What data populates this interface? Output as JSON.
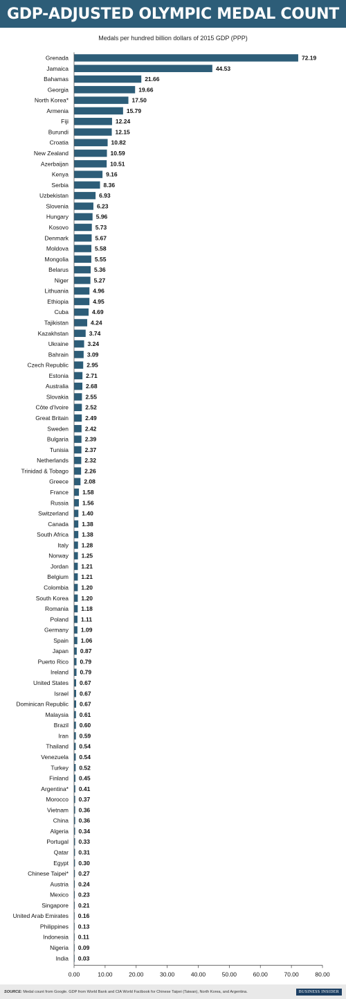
{
  "header": {
    "title": "GDP-ADJUSTED OLYMPIC MEDAL COUNT",
    "subtitle": "Medals per hundred billion dollars of 2015 GDP (PPP)"
  },
  "footer": {
    "source_label": "SOURCE:",
    "source_text": "Medal count from Google. GDP from World Bank and CIA World Factbook for Chinese Taipei (Taiwan), North Korea, and Argentina.",
    "brand": "BUSINESS INSIDER"
  },
  "colors": {
    "bar": "#2d5d78",
    "title_background": "#2d5d78",
    "footer_background": "#e9e9e9"
  },
  "chart_data": {
    "type": "bar",
    "orientation": "horizontal",
    "title": "GDP-ADJUSTED OLYMPIC MEDAL COUNT",
    "subtitle": "Medals per hundred billion dollars of 2015 GDP (PPP)",
    "xlim": [
      0,
      80
    ],
    "x_ticks": [
      "0.00",
      "10.00",
      "20.00",
      "30.00",
      "40.00",
      "50.00",
      "60.00",
      "70.00",
      "80.00"
    ],
    "grid": false,
    "legend": "none",
    "categories": [
      "Grenada",
      "Jamaica",
      "Bahamas",
      "Georgia",
      "North Korea*",
      "Armenia",
      "Fiji",
      "Burundi",
      "Croatia",
      "New Zealand",
      "Azerbaijan",
      "Kenya",
      "Serbia",
      "Uzbekistan",
      "Slovenia",
      "Hungary",
      "Kosovo",
      "Denmark",
      "Moldova",
      "Mongolia",
      "Belarus",
      "Niger",
      "Lithuania",
      "Ethiopia",
      "Cuba",
      "Tajikistan",
      "Kazakhstan",
      "Ukraine",
      "Bahrain",
      "Czech Republic",
      "Estonia",
      "Australia",
      "Slovakia",
      "Côte d'Ivoire",
      "Great Britain",
      "Sweden",
      "Bulgaria",
      "Tunisia",
      "Netherlands",
      "Trinidad & Tobago",
      "Greece",
      "France",
      "Russia",
      "Switzerland",
      "Canada",
      "South Africa",
      "Italy",
      "Norway",
      "Jordan",
      "Belgium",
      "Colombia",
      "South Korea",
      "Romania",
      "Poland",
      "Germany",
      "Spain",
      "Japan",
      "Puerto Rico",
      "Ireland",
      "United States",
      "Israel",
      "Dominican Republic",
      "Malaysia",
      "Brazil",
      "Iran",
      "Thailand",
      "Venezuela",
      "Turkey",
      "Finland",
      "Argentina*",
      "Morocco",
      "Vietnam",
      "China",
      "Algeria",
      "Portugal",
      "Qatar",
      "Egypt",
      "Chinese Taipei*",
      "Austria",
      "Mexico",
      "Singapore",
      "United Arab Emirates",
      "Philippines",
      "Indonesia",
      "Nigeria",
      "India"
    ],
    "values": [
      72.19,
      44.53,
      21.66,
      19.66,
      17.5,
      15.79,
      12.24,
      12.15,
      10.82,
      10.59,
      10.51,
      9.16,
      8.36,
      6.93,
      6.23,
      5.96,
      5.73,
      5.67,
      5.58,
      5.55,
      5.36,
      5.27,
      4.96,
      4.95,
      4.69,
      4.24,
      3.74,
      3.24,
      3.09,
      2.95,
      2.71,
      2.68,
      2.55,
      2.52,
      2.49,
      2.42,
      2.39,
      2.37,
      2.32,
      2.26,
      2.08,
      1.58,
      1.56,
      1.4,
      1.38,
      1.38,
      1.28,
      1.25,
      1.21,
      1.21,
      1.2,
      1.2,
      1.18,
      1.11,
      1.09,
      1.06,
      0.87,
      0.79,
      0.79,
      0.67,
      0.67,
      0.67,
      0.61,
      0.6,
      0.59,
      0.54,
      0.54,
      0.52,
      0.45,
      0.41,
      0.37,
      0.36,
      0.36,
      0.34,
      0.33,
      0.31,
      0.3,
      0.27,
      0.24,
      0.23,
      0.21,
      0.16,
      0.13,
      0.11,
      0.09,
      0.03
    ],
    "value_labels": [
      "72.19",
      "44.53",
      "21.66",
      "19.66",
      "17.50",
      "15.79",
      "12.24",
      "12.15",
      "10.82",
      "10.59",
      "10.51",
      "9.16",
      "8.36",
      "6.93",
      "6.23",
      "5.96",
      "5.73",
      "5.67",
      "5.58",
      "5.55",
      "5.36",
      "5.27",
      "4.96",
      "4.95",
      "4.69",
      "4.24",
      "3.74",
      "3.24",
      "3.09",
      "2.95",
      "2.71",
      "2.68",
      "2.55",
      "2.52",
      "2.49",
      "2.42",
      "2.39",
      "2.37",
      "2.32",
      "2.26",
      "2.08",
      "1.58",
      "1.56",
      "1.40",
      "1.38",
      "1.38",
      "1.28",
      "1.25",
      "1.21",
      "1.21",
      "1.20",
      "1.20",
      "1.18",
      "1.11",
      "1.09",
      "1.06",
      "0.87",
      "0.79",
      "0.79",
      "0.67",
      "0.67",
      "0.67",
      "0.61",
      "0.60",
      "0.59",
      "0.54",
      "0.54",
      "0.52",
      "0.45",
      "0.41",
      "0.37",
      "0.36",
      "0.36",
      "0.34",
      "0.33",
      "0.31",
      "0.30",
      "0.27",
      "0.24",
      "0.23",
      "0.21",
      "0.16",
      "0.13",
      "0.11",
      "0.09",
      "0.03"
    ]
  }
}
